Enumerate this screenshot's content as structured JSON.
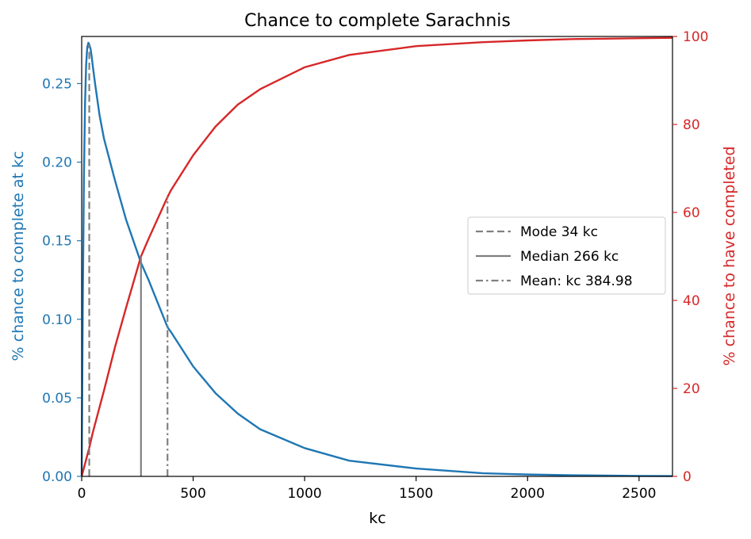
{
  "chart_data": {
    "type": "line",
    "title": "Chance to complete Sarachnis",
    "xlabel": "kc",
    "ylabel_left": "% chance to complete at kc",
    "ylabel_right": "% chance to have completed",
    "xlim": [
      0,
      2650
    ],
    "ylim_left": [
      0,
      0.28
    ],
    "ylim_right": [
      0,
      100
    ],
    "x_ticks": [
      0,
      500,
      1000,
      1500,
      2000,
      2500
    ],
    "y_left_ticks": [
      0.0,
      0.05,
      0.1,
      0.15,
      0.2,
      0.25
    ],
    "y_right_ticks": [
      0,
      20,
      40,
      60,
      80,
      100
    ],
    "grid": false,
    "legend_position": "center-right",
    "colors": {
      "left": "#1f77b4",
      "right": "#d62728",
      "marker": "#808080"
    },
    "series": [
      {
        "axis": "left",
        "x": [
          0,
          5,
          10,
          15,
          20,
          25,
          30,
          34,
          40,
          45,
          50,
          60,
          80,
          100,
          150,
          200,
          266,
          300,
          385,
          400,
          500,
          600,
          700,
          800,
          1000,
          1200,
          1500,
          1800,
          2000,
          2200,
          2500,
          2650
        ],
        "values": [
          0,
          0.11,
          0.19,
          0.237,
          0.262,
          0.273,
          0.276,
          0.275,
          0.272,
          0.267,
          0.261,
          0.25,
          0.23,
          0.215,
          0.188,
          0.163,
          0.136,
          0.125,
          0.095,
          0.092,
          0.07,
          0.053,
          0.04,
          0.03,
          0.018,
          0.01,
          0.005,
          0.002,
          0.0012,
          0.0007,
          0.0003,
          0.0002
        ]
      },
      {
        "axis": "right",
        "x": [
          0,
          34,
          50,
          100,
          150,
          200,
          266,
          300,
          385,
          400,
          500,
          600,
          700,
          800,
          1000,
          1200,
          1500,
          1800,
          2000,
          2200,
          2500,
          2650
        ],
        "values": [
          0,
          6.5,
          10.0,
          19.5,
          29.5,
          38.5,
          50.0,
          54.0,
          63.5,
          65.0,
          73.0,
          79.5,
          84.5,
          88.0,
          93.0,
          95.8,
          97.8,
          98.7,
          99.1,
          99.4,
          99.6,
          99.7
        ]
      }
    ],
    "markers": [
      {
        "label": "Mode 34 kc",
        "x": 34,
        "style": "dashed",
        "y_left": 0.275
      },
      {
        "label": "Median 266 kc",
        "x": 266,
        "style": "solid",
        "y_right": 50.0
      },
      {
        "label": "Mean: kc 384.98",
        "x": 384.98,
        "style": "dashdot",
        "y_right": 63.5
      }
    ]
  }
}
